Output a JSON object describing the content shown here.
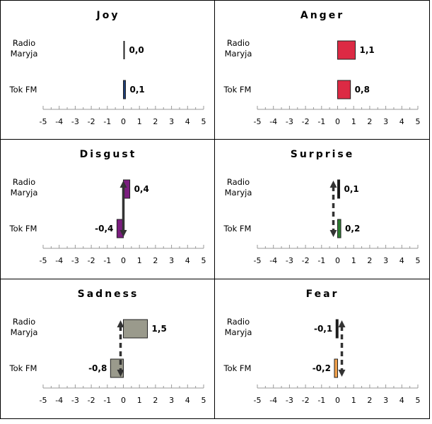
{
  "chart_data": [
    {
      "type": "bar",
      "title": "Joy",
      "categories": [
        "Radio Maryja",
        "Tok FM"
      ],
      "values": [
        0.0,
        0.1
      ],
      "value_labels": [
        "0,0",
        "0,1"
      ],
      "colors": [
        "#222222",
        "#1f3f7a"
      ],
      "xlim": [
        -5,
        5
      ],
      "xticks": [
        "-5",
        "-4",
        "-3",
        "-2",
        "-1",
        "0",
        "1",
        "2",
        "3",
        "4",
        "5"
      ],
      "arrow": false
    },
    {
      "type": "bar",
      "title": "Anger",
      "categories": [
        "Radio Maryja",
        "Tok FM"
      ],
      "values": [
        1.1,
        0.8
      ],
      "value_labels": [
        "1,1",
        "0,8"
      ],
      "colors": [
        "#dc2a44",
        "#dc2a44"
      ],
      "xlim": [
        -5,
        5
      ],
      "xticks": [
        "-5",
        "-4",
        "-3",
        "-2",
        "-1",
        "0",
        "1",
        "2",
        "3",
        "4",
        "5"
      ],
      "arrow": false
    },
    {
      "type": "bar",
      "title": "Disgust",
      "categories": [
        "Radio Maryja",
        "Tok FM"
      ],
      "values": [
        0.4,
        -0.4
      ],
      "value_labels": [
        "0,4",
        "-0,4"
      ],
      "colors": [
        "#7b1d7f",
        "#7b1d7f"
      ],
      "xlim": [
        -5,
        5
      ],
      "xticks": [
        "-5",
        "-4",
        "-3",
        "-2",
        "-1",
        "0",
        "1",
        "2",
        "3",
        "4",
        "5"
      ],
      "arrow": true,
      "arrow_style": "solid"
    },
    {
      "type": "bar",
      "title": "Surprise",
      "categories": [
        "Radio Maryja",
        "Tok FM"
      ],
      "values": [
        0.1,
        0.2
      ],
      "value_labels": [
        "0,1",
        "0,2"
      ],
      "colors": [
        "#1a1a1a",
        "#2e7d32"
      ],
      "xlim": [
        -5,
        5
      ],
      "xticks": [
        "-5",
        "-4",
        "-3",
        "-2",
        "-1",
        "0",
        "1",
        "2",
        "3",
        "4",
        "5"
      ],
      "arrow": true,
      "arrow_style": "dashed"
    },
    {
      "type": "bar",
      "title": "Sadness",
      "categories": [
        "Radio Maryja",
        "Tok FM"
      ],
      "values": [
        1.5,
        -0.8
      ],
      "value_labels": [
        "1,5",
        "-0,8"
      ],
      "colors": [
        "#9a9a8c",
        "#9a9a8c"
      ],
      "xlim": [
        -5,
        5
      ],
      "xticks": [
        "-5",
        "-4",
        "-3",
        "-2",
        "-1",
        "0",
        "1",
        "2",
        "3",
        "4",
        "5"
      ],
      "arrow": true,
      "arrow_style": "dashed"
    },
    {
      "type": "bar",
      "title": "Fear",
      "categories": [
        "Radio Maryja",
        "Tok FM"
      ],
      "values": [
        -0.1,
        -0.2
      ],
      "value_labels": [
        "-0,1",
        "-0,2"
      ],
      "colors": [
        "#1a1a1a",
        "#f0a04b"
      ],
      "xlim": [
        -5,
        5
      ],
      "xticks": [
        "-5",
        "-4",
        "-3",
        "-2",
        "-1",
        "0",
        "1",
        "2",
        "3",
        "4",
        "5"
      ],
      "arrow": true,
      "arrow_style": "dashed"
    }
  ]
}
